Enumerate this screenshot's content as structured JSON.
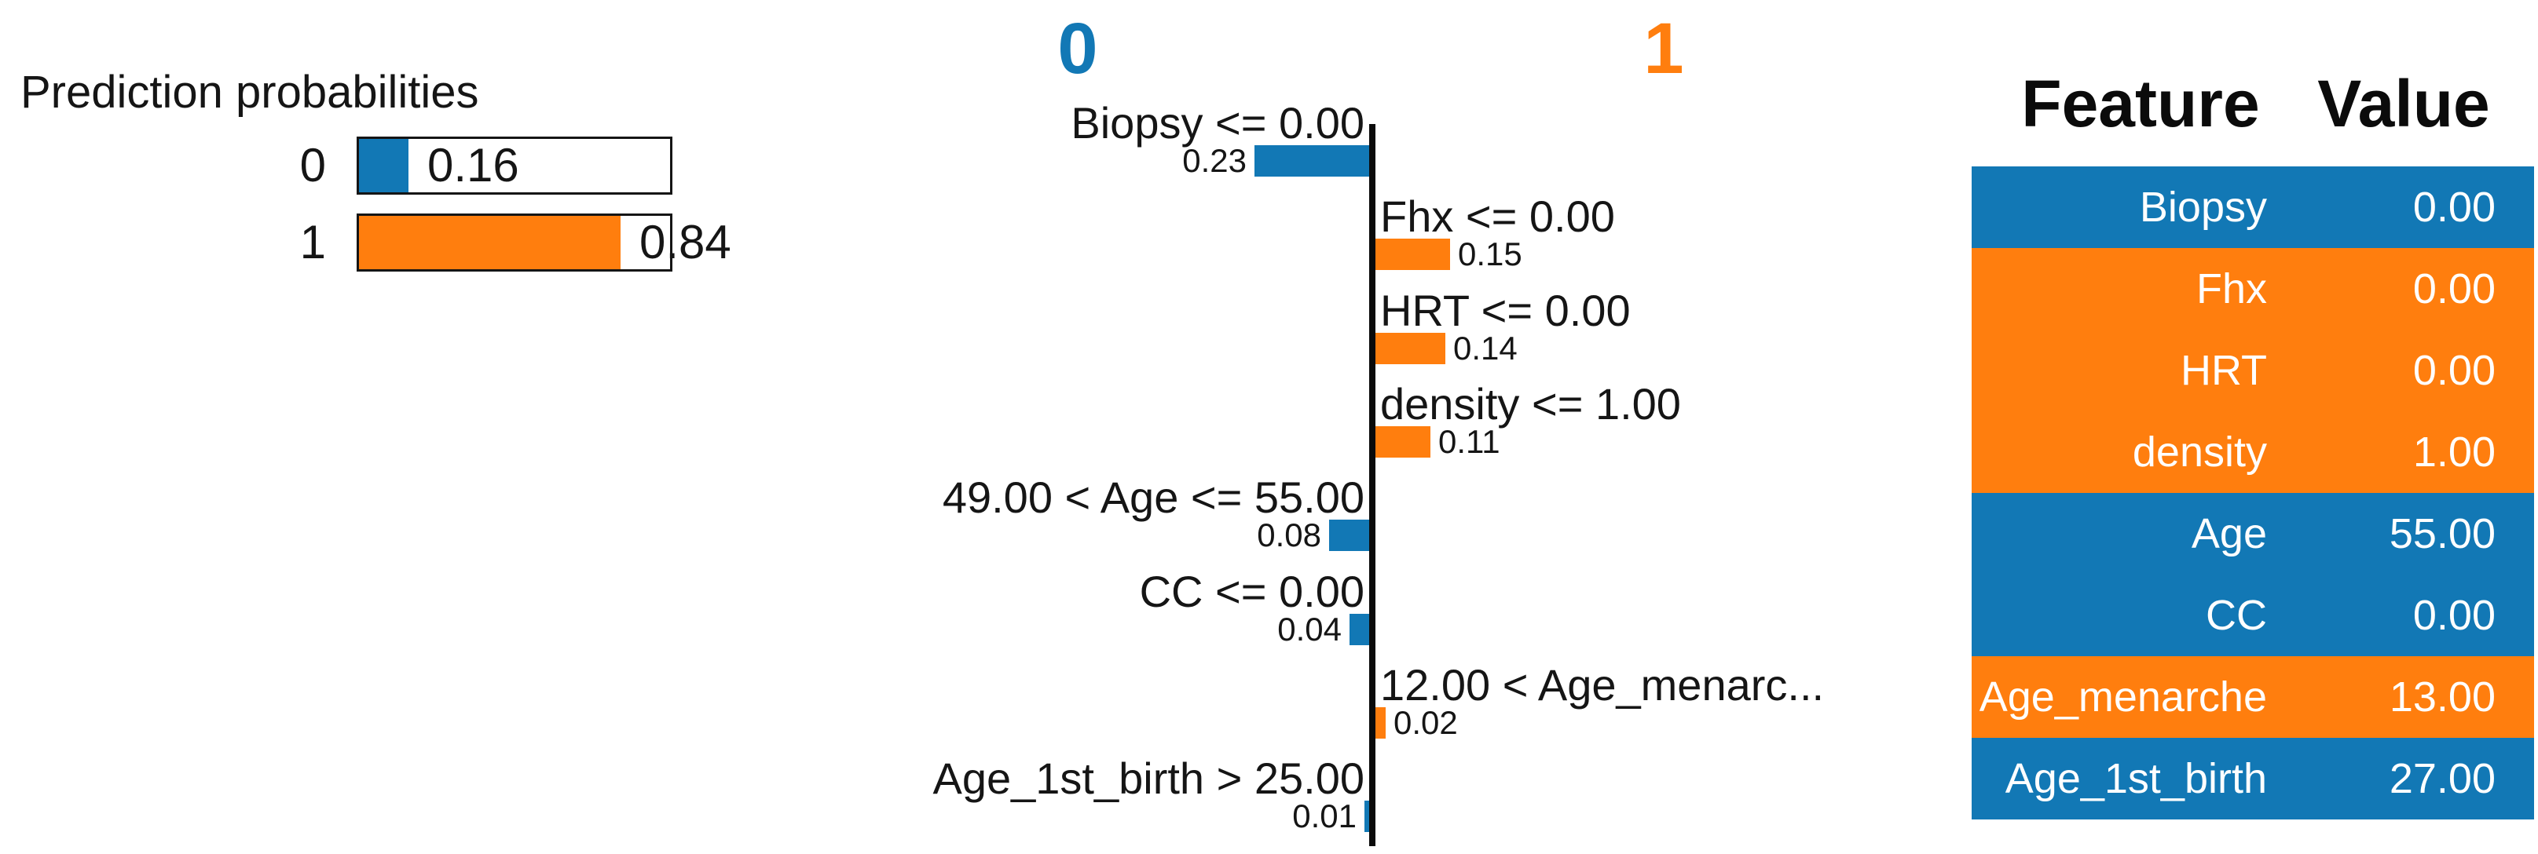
{
  "colors": {
    "blue": "#1278b5",
    "orange": "#ff7e0e",
    "axis": "#0b0b0b"
  },
  "prediction": {
    "title": "Prediction probabilities",
    "rows": [
      {
        "label": "0",
        "value": "0.16",
        "fraction": 0.16,
        "color": "blue"
      },
      {
        "label": "1",
        "value": "0.84",
        "fraction": 0.84,
        "color": "orange"
      }
    ]
  },
  "explanation": {
    "left_class_label": "0",
    "right_class_label": "1",
    "rows": [
      {
        "label": "Biopsy <= 0.00",
        "value": "0.23",
        "weight": 0.23,
        "side": "left"
      },
      {
        "label": "Fhx <= 0.00",
        "value": "0.15",
        "weight": 0.15,
        "side": "right"
      },
      {
        "label": "HRT <= 0.00",
        "value": "0.14",
        "weight": 0.14,
        "side": "right"
      },
      {
        "label": "density <= 1.00",
        "value": "0.11",
        "weight": 0.11,
        "side": "right"
      },
      {
        "label": "49.00 < Age <= 55.00",
        "value": "0.08",
        "weight": 0.08,
        "side": "left"
      },
      {
        "label": "CC <= 0.00",
        "value": "0.04",
        "weight": 0.04,
        "side": "left"
      },
      {
        "label": "12.00 < Age_menarc...",
        "value": "0.02",
        "weight": 0.02,
        "side": "right"
      },
      {
        "label": "Age_1st_birth > 25.00",
        "value": "0.01",
        "weight": 0.01,
        "side": "left"
      }
    ]
  },
  "table": {
    "feature_header": "Feature",
    "value_header": "Value",
    "rows": [
      {
        "feature": "Biopsy",
        "value": "0.00",
        "color": "blue"
      },
      {
        "feature": "Fhx",
        "value": "0.00",
        "color": "orange"
      },
      {
        "feature": "HRT",
        "value": "0.00",
        "color": "orange"
      },
      {
        "feature": "density",
        "value": "1.00",
        "color": "orange"
      },
      {
        "feature": "Age",
        "value": "55.00",
        "color": "blue"
      },
      {
        "feature": "CC",
        "value": "0.00",
        "color": "blue"
      },
      {
        "feature": "Age_menarche",
        "value": "13.00",
        "color": "orange"
      },
      {
        "feature": "Age_1st_birth",
        "value": "27.00",
        "color": "blue"
      }
    ]
  },
  "chart_data": [
    {
      "type": "bar",
      "title": "Prediction probabilities",
      "categories": [
        "0",
        "1"
      ],
      "values": [
        0.16,
        0.84
      ],
      "value_labels": [
        "0.16",
        "0.84"
      ],
      "colors": [
        "#1278b5",
        "#ff7e0e"
      ],
      "xlim": [
        0,
        1
      ],
      "orientation": "horizontal"
    },
    {
      "type": "bar",
      "title": "Local feature contributions (diverging, class 0 left / class 1 right)",
      "left_class": "0",
      "right_class": "1",
      "categories": [
        "Biopsy <= 0.00",
        "Fhx <= 0.00",
        "HRT <= 0.00",
        "density <= 1.00",
        "49.00 < Age <= 55.00",
        "CC <= 0.00",
        "12.00 < Age_menarc...",
        "Age_1st_birth > 25.00"
      ],
      "values": [
        -0.23,
        0.15,
        0.14,
        0.11,
        -0.08,
        -0.04,
        0.02,
        -0.01
      ],
      "value_labels": [
        "0.23",
        "0.15",
        "0.14",
        "0.11",
        "0.08",
        "0.04",
        "0.02",
        "0.01"
      ],
      "xlim": [
        -0.25,
        0.25
      ],
      "grid": false,
      "orientation": "horizontal"
    },
    {
      "type": "table",
      "headers": [
        "Feature",
        "Value"
      ],
      "rows": [
        [
          "Biopsy",
          "0.00"
        ],
        [
          "Fhx",
          "0.00"
        ],
        [
          "HRT",
          "0.00"
        ],
        [
          "density",
          "1.00"
        ],
        [
          "Age",
          "55.00"
        ],
        [
          "CC",
          "0.00"
        ],
        [
          "Age_menarche",
          "13.00"
        ],
        [
          "Age_1st_birth",
          "27.00"
        ]
      ]
    }
  ]
}
